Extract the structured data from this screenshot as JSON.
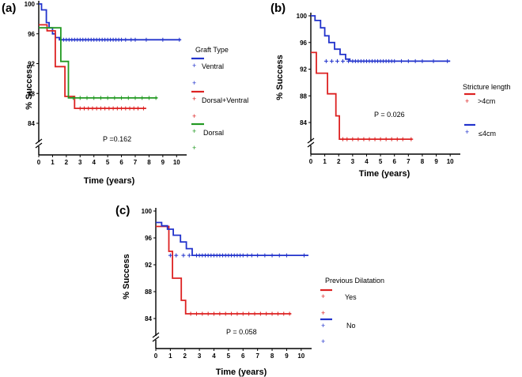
{
  "chart_data": [
    {
      "type": "line",
      "panel": "(a)",
      "xlabel": "Time (years)",
      "ylabel": "% Success",
      "xlim": [
        0,
        10.5
      ],
      "ylim": [
        80,
        100
      ],
      "xticks": [
        "0",
        "1",
        "2",
        "3",
        "4",
        "5",
        "6",
        "7",
        "8",
        "9",
        "10"
      ],
      "yticks": [
        "100",
        "96",
        "92",
        "88",
        "84"
      ],
      "ytick_values": [
        100,
        96,
        92,
        88,
        84
      ],
      "legend_title": "Graft Type",
      "annotation": "P =0.162",
      "series": [
        {
          "name": "Ventral",
          "color": "#2233cc",
          "steps": [
            [
              0,
              100
            ],
            [
              0.2,
              100
            ],
            [
              0.2,
              99.2
            ],
            [
              0.55,
              99.2
            ],
            [
              0.55,
              97.5
            ],
            [
              0.75,
              97.5
            ],
            [
              0.75,
              96.8
            ],
            [
              1.0,
              96.8
            ],
            [
              1.0,
              96.0
            ],
            [
              1.2,
              96.0
            ],
            [
              1.2,
              95.5
            ],
            [
              1.5,
              95.5
            ],
            [
              1.5,
              95.2
            ],
            [
              10.3,
              95.2
            ]
          ],
          "censor": [
            1.6,
            1.8,
            2.0,
            2.2,
            2.4,
            2.6,
            2.8,
            3.0,
            3.2,
            3.4,
            3.6,
            3.8,
            4.0,
            4.2,
            4.4,
            4.6,
            4.8,
            5.0,
            5.2,
            5.4,
            5.6,
            5.8,
            6.0,
            6.3,
            6.7,
            7.0,
            7.8,
            9.0,
            10.2
          ],
          "censor_y": 95.2
        },
        {
          "name": "Dorsal+Ventral",
          "color": "#dd2222",
          "steps": [
            [
              0,
              97.2
            ],
            [
              0.6,
              97.2
            ],
            [
              0.6,
              96.4
            ],
            [
              1.2,
              96.4
            ],
            [
              1.2,
              91.6
            ],
            [
              1.9,
              91.6
            ],
            [
              1.9,
              87.6
            ],
            [
              2.6,
              87.6
            ],
            [
              2.6,
              86.0
            ],
            [
              7.8,
              86.0
            ]
          ],
          "censor": [
            3.0,
            3.3,
            3.6,
            3.9,
            4.2,
            4.5,
            4.8,
            5.1,
            5.4,
            5.7,
            6.0,
            6.3,
            6.6,
            6.9,
            7.2,
            7.6
          ],
          "censor_y": 86.0
        },
        {
          "name": "Dorsal",
          "color": "#229922",
          "steps": [
            [
              0,
              96.8
            ],
            [
              1.6,
              96.8
            ],
            [
              1.6,
              92.3
            ],
            [
              2.15,
              92.3
            ],
            [
              2.15,
              87.4
            ],
            [
              8.6,
              87.4
            ]
          ],
          "censor": [
            2.5,
            3.0,
            3.5,
            4.0,
            4.5,
            5.0,
            5.5,
            6.0,
            6.5,
            7.0,
            7.5,
            8.0,
            8.5
          ],
          "censor_y": 87.4
        }
      ]
    },
    {
      "type": "line",
      "panel": "(b)",
      "xlabel": "Time (years)",
      "ylabel": "% Success",
      "xlim": [
        0,
        10.5
      ],
      "ylim": [
        80,
        100
      ],
      "xticks": [
        "0",
        "1",
        "2",
        "3",
        "4",
        "5",
        "6",
        "7",
        "8",
        "9",
        "10"
      ],
      "yticks": [
        "100",
        "96",
        "92",
        "88",
        "84"
      ],
      "ytick_values": [
        100,
        96,
        92,
        88,
        84
      ],
      "legend_title": "Stricture length",
      "annotation": "P = 0.026",
      "series": [
        {
          "name": ">4cm",
          "color": "#dd2222",
          "steps": [
            [
              0,
              94.5
            ],
            [
              0.4,
              94.5
            ],
            [
              0.4,
              91.4
            ],
            [
              1.2,
              91.4
            ],
            [
              1.2,
              88.3
            ],
            [
              1.8,
              88.3
            ],
            [
              1.8,
              85.0
            ],
            [
              2.05,
              85.0
            ],
            [
              2.05,
              81.5
            ],
            [
              7.3,
              81.5
            ]
          ],
          "censor": [
            2.3,
            2.6,
            3.0,
            3.4,
            3.8,
            4.2,
            4.6,
            5.0,
            5.4,
            5.8,
            6.2,
            6.6,
            7.2
          ],
          "censor_y": 81.5
        },
        {
          "name": "≤4cm",
          "color": "#2233cc",
          "steps": [
            [
              0,
              100
            ],
            [
              0.3,
              100
            ],
            [
              0.3,
              99.3
            ],
            [
              0.7,
              99.3
            ],
            [
              0.7,
              98.2
            ],
            [
              1.0,
              98.2
            ],
            [
              1.0,
              97.0
            ],
            [
              1.3,
              97.0
            ],
            [
              1.3,
              96.0
            ],
            [
              1.7,
              96.0
            ],
            [
              1.7,
              95.0
            ],
            [
              2.1,
              95.0
            ],
            [
              2.1,
              94.2
            ],
            [
              2.5,
              94.2
            ],
            [
              2.5,
              93.5
            ],
            [
              2.8,
              93.5
            ],
            [
              2.8,
              93.2
            ],
            [
              10.0,
              93.2
            ]
          ],
          "censor": [
            1.1,
            1.5,
            1.9,
            2.3,
            2.7,
            3.0,
            3.2,
            3.4,
            3.6,
            3.8,
            4.0,
            4.2,
            4.4,
            4.6,
            4.8,
            5.0,
            5.2,
            5.4,
            5.6,
            5.8,
            6.0,
            6.5,
            7.0,
            7.5,
            8.0,
            8.8,
            9.8
          ],
          "censor_y": 93.2
        }
      ]
    },
    {
      "type": "line",
      "panel": "(c)",
      "xlabel": "Time (years)",
      "ylabel": "% Success",
      "xlim": [
        0,
        10.5
      ],
      "ylim": [
        80,
        100
      ],
      "xticks": [
        "0",
        "1",
        "2",
        "3",
        "4",
        "5",
        "6",
        "7",
        "8",
        "9",
        "10"
      ],
      "yticks": [
        "100",
        "96",
        "92",
        "88",
        "84"
      ],
      "ytick_values": [
        100,
        96,
        92,
        88,
        84
      ],
      "legend_title": "Previous Dilatation",
      "annotation": "P = 0.058",
      "series": [
        {
          "name": "Yes",
          "color": "#dd2222",
          "steps": [
            [
              0,
              97.7
            ],
            [
              0.9,
              97.7
            ],
            [
              0.9,
              94.0
            ],
            [
              1.15,
              94.0
            ],
            [
              1.15,
              90.0
            ],
            [
              1.75,
              90.0
            ],
            [
              1.75,
              86.7
            ],
            [
              2.05,
              86.7
            ],
            [
              2.05,
              84.7
            ],
            [
              9.3,
              84.7
            ]
          ],
          "censor": [
            2.4,
            2.8,
            3.2,
            3.6,
            4.0,
            4.4,
            4.8,
            5.2,
            5.6,
            6.0,
            6.4,
            6.8,
            7.2,
            7.6,
            8.0,
            8.4,
            8.8,
            9.2
          ],
          "censor_y": 84.7
        },
        {
          "name": "No",
          "color": "#2233cc",
          "steps": [
            [
              0,
              98.3
            ],
            [
              0.4,
              98.3
            ],
            [
              0.4,
              97.8
            ],
            [
              0.8,
              97.8
            ],
            [
              0.8,
              97.3
            ],
            [
              1.2,
              97.3
            ],
            [
              1.2,
              96.4
            ],
            [
              1.7,
              96.4
            ],
            [
              1.7,
              95.4
            ],
            [
              2.1,
              95.4
            ],
            [
              2.1,
              94.4
            ],
            [
              2.5,
              94.4
            ],
            [
              2.5,
              93.4
            ],
            [
              10.5,
              93.4
            ]
          ],
          "censor": [
            1.0,
            1.4,
            1.9,
            2.3,
            2.8,
            3.0,
            3.2,
            3.4,
            3.6,
            3.8,
            4.0,
            4.2,
            4.4,
            4.6,
            4.8,
            5.0,
            5.2,
            5.4,
            5.6,
            5.8,
            6.0,
            6.3,
            6.6,
            7.0,
            7.5,
            8.0,
            8.5,
            9.0,
            10.2
          ],
          "censor_y": 93.4
        }
      ]
    }
  ]
}
